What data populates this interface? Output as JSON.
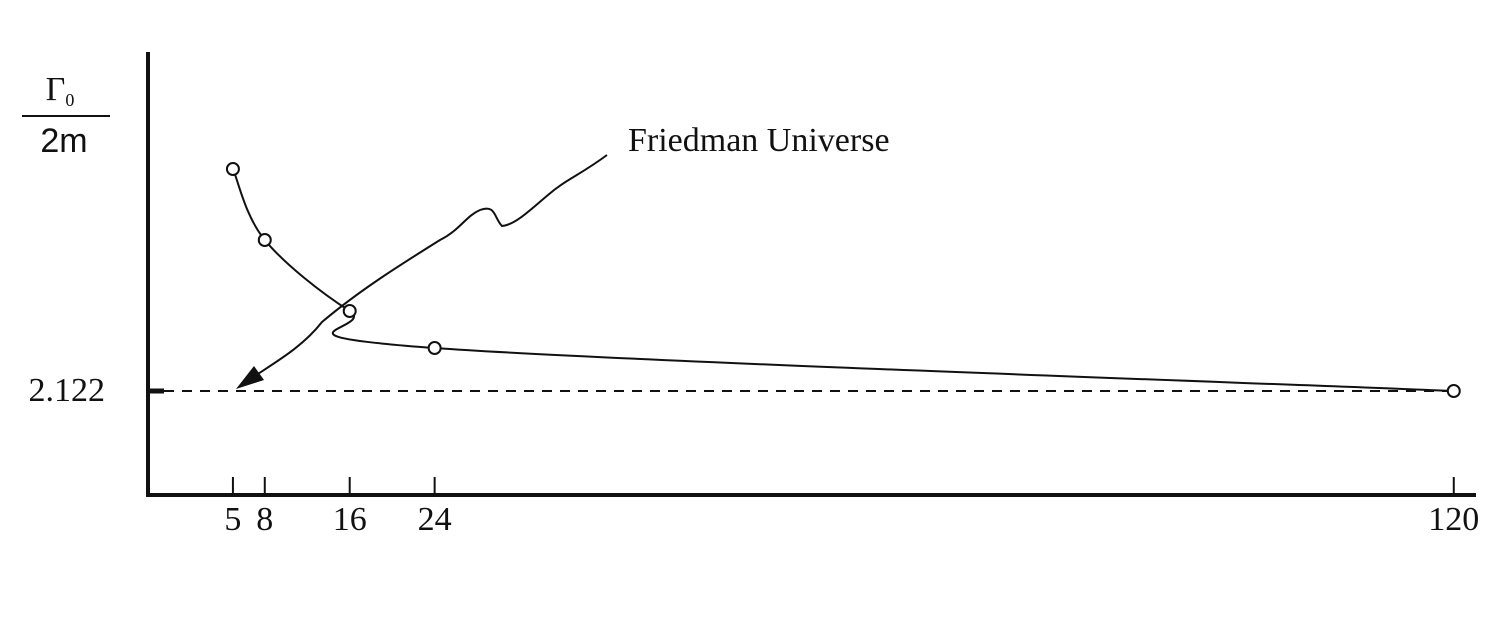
{
  "chart_data": {
    "type": "line",
    "ylabel": {
      "symbol": "Γ",
      "subscript": "0",
      "denominator": "2m"
    },
    "annotation": "Friedman Universe",
    "x": [
      5,
      8,
      16,
      24,
      120
    ],
    "values": [
      2.344,
      2.273,
      2.202,
      2.165,
      2.122
    ],
    "color": "#111111",
    "xlim": [
      -3,
      122
    ],
    "xticks": [
      5,
      8,
      16,
      24,
      120
    ],
    "ylim": [
      2.018,
      2.461
    ],
    "yticks": [
      2.122
    ],
    "reference_line": 2.122
  }
}
